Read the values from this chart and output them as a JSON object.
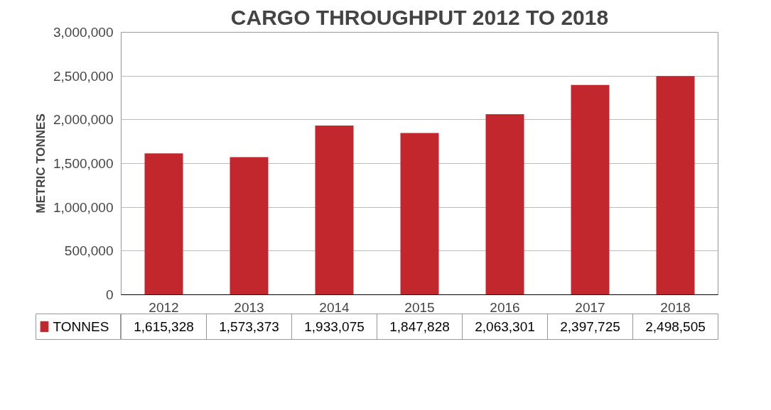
{
  "chart_data": {
    "type": "bar",
    "title": "CARGO THROUGHPUT 2012 TO 2018",
    "ylabel": "METRIC TONNES",
    "categories": [
      "2012",
      "2013",
      "2014",
      "2015",
      "2016",
      "2017",
      "2018"
    ],
    "series": [
      {
        "name": "TONNES",
        "color": "#c1272d",
        "values": [
          1615328,
          1573373,
          1933075,
          1847828,
          2063301,
          2397725,
          2498505
        ],
        "value_labels": [
          "1,615,328",
          "1,573,373",
          "1,933,075",
          "1,847,828",
          "2,063,301",
          "2,397,725",
          "2,498,505"
        ]
      }
    ],
    "ylim": [
      0,
      3000000
    ],
    "yticks": [
      0,
      {
        "value": 500000,
        "label": "500,000"
      },
      {
        "value": 1000000,
        "label": "1,000,000"
      },
      {
        "value": 1500000,
        "label": "1,500,000"
      },
      {
        "value": 2000000,
        "label": "2,000,000"
      },
      {
        "value": 2500000,
        "label": "2,500,000"
      },
      {
        "value": 3000000,
        "label": "3,000,000"
      }
    ],
    "grid": "y",
    "legend": "bottom"
  }
}
